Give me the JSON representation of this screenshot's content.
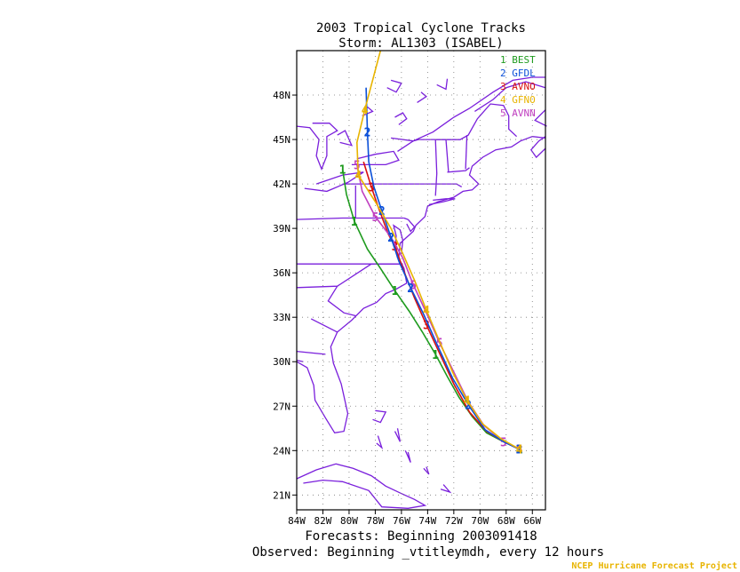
{
  "title": {
    "line1": "2003 Tropical Cyclone Tracks",
    "line2": "Storm: AL1303 (ISABEL)"
  },
  "footer": {
    "forecasts": "Forecasts: Beginning 2003091418",
    "observed": "Observed: Beginning _vtitleymdh, every 12 hours",
    "credit": "NCEP Hurricane Forecast Project"
  },
  "colors": {
    "coast": "#7a1fdc",
    "BEST": "#1e9b1e",
    "GFDL": "#0a4fd8",
    "AVNO": "#d81010",
    "GFNO": "#e8b400",
    "AVNN": "#c040c0",
    "credit": "#e8b400"
  },
  "map": {
    "lon_range": [
      -84,
      -65
    ],
    "lat_range": [
      20,
      51
    ],
    "lon_ticks": [
      {
        "value": -84,
        "label": "84W"
      },
      {
        "value": -82,
        "label": "82W"
      },
      {
        "value": -80,
        "label": "80W"
      },
      {
        "value": -78,
        "label": "78W"
      },
      {
        "value": -76,
        "label": "76W"
      },
      {
        "value": -74,
        "label": "74W"
      },
      {
        "value": -72,
        "label": "72W"
      },
      {
        "value": -70,
        "label": "70W"
      },
      {
        "value": -68,
        "label": "68W"
      },
      {
        "value": -66,
        "label": "66W"
      }
    ],
    "lat_ticks": [
      {
        "value": 21,
        "label": "21N"
      },
      {
        "value": 24,
        "label": "24N"
      },
      {
        "value": 27,
        "label": "27N"
      },
      {
        "value": 30,
        "label": "30N"
      },
      {
        "value": 33,
        "label": "33N"
      },
      {
        "value": 36,
        "label": "36N"
      },
      {
        "value": 39,
        "label": "39N"
      },
      {
        "value": 42,
        "label": "42N"
      },
      {
        "value": 45,
        "label": "45N"
      },
      {
        "value": 48,
        "label": "48N"
      }
    ]
  },
  "legend": [
    {
      "id": "1",
      "name": "BEST",
      "color": "#1e9b1e"
    },
    {
      "id": "2",
      "name": "GFDL",
      "color": "#0a4fd8"
    },
    {
      "id": "3",
      "name": "AVNO",
      "color": "#d81010"
    },
    {
      "id": "4",
      "name": "GFNO",
      "color": "#e8b400"
    },
    {
      "id": "5",
      "name": "AVNN",
      "color": "#c040c0"
    }
  ],
  "tracks": [
    {
      "id": "1",
      "name": "BEST",
      "color": "#1e9b1e",
      "points": [
        [
          -67.0,
          24.1
        ],
        [
          -68.2,
          24.6
        ],
        [
          -69.5,
          25.2
        ],
        [
          -70.6,
          26.3
        ],
        [
          -71.6,
          27.6
        ],
        [
          -72.5,
          29.0
        ],
        [
          -73.4,
          30.5
        ],
        [
          -74.4,
          32.0
        ],
        [
          -75.4,
          33.4
        ],
        [
          -76.5,
          34.8
        ],
        [
          -77.6,
          36.3
        ],
        [
          -78.6,
          37.6
        ],
        [
          -79.6,
          39.5
        ],
        [
          -80.2,
          41.3
        ],
        [
          -80.5,
          43.0
        ]
      ],
      "labels": [
        [
          -67.0,
          24.1
        ],
        [
          -73.4,
          30.5
        ],
        [
          -76.5,
          34.8
        ],
        [
          -79.6,
          39.5
        ],
        [
          -80.5,
          43.0
        ]
      ]
    },
    {
      "id": "2",
      "name": "GFDL",
      "color": "#0a4fd8",
      "points": [
        [
          -67.0,
          24.1
        ],
        [
          -68.2,
          24.6
        ],
        [
          -69.6,
          25.4
        ],
        [
          -70.9,
          27.1
        ],
        [
          -72.1,
          28.9
        ],
        [
          -73.2,
          31.0
        ],
        [
          -74.3,
          33.2
        ],
        [
          -75.3,
          35.0
        ],
        [
          -76.2,
          36.8
        ],
        [
          -76.8,
          38.4
        ],
        [
          -77.5,
          40.2
        ],
        [
          -78.1,
          41.8
        ],
        [
          -78.5,
          43.5
        ],
        [
          -78.6,
          45.5
        ],
        [
          -78.7,
          48.5
        ]
      ],
      "labels": [
        [
          -67.0,
          24.1
        ],
        [
          -70.9,
          27.1
        ],
        [
          -75.3,
          35.0
        ],
        [
          -76.8,
          38.4
        ],
        [
          -77.5,
          40.2
        ],
        [
          -78.6,
          45.5
        ]
      ]
    },
    {
      "id": "3",
      "name": "AVNO",
      "color": "#d81010",
      "points": [
        [
          -67.0,
          24.1
        ],
        [
          -68.2,
          24.6
        ],
        [
          -69.5,
          25.3
        ],
        [
          -70.8,
          26.6
        ],
        [
          -72.0,
          28.5
        ],
        [
          -73.0,
          30.4
        ],
        [
          -74.1,
          32.5
        ],
        [
          -75.0,
          34.3
        ],
        [
          -75.9,
          36.3
        ],
        [
          -76.5,
          37.8
        ],
        [
          -77.0,
          38.6
        ],
        [
          -77.8,
          40.5
        ],
        [
          -78.3,
          41.8
        ],
        [
          -78.9,
          43.5
        ]
      ],
      "labels": [
        [
          -67.0,
          24.1
        ],
        [
          -74.1,
          32.5
        ],
        [
          -76.5,
          37.8
        ],
        [
          -78.3,
          41.8
        ]
      ]
    },
    {
      "id": "4",
      "name": "GFNO",
      "color": "#e8b400",
      "points": [
        [
          -67.0,
          24.1
        ],
        [
          -68.4,
          24.8
        ],
        [
          -69.8,
          25.8
        ],
        [
          -71.0,
          27.4
        ],
        [
          -72.1,
          29.3
        ],
        [
          -73.1,
          31.4
        ],
        [
          -74.1,
          33.5
        ],
        [
          -75.0,
          35.5
        ],
        [
          -75.9,
          37.3
        ],
        [
          -76.8,
          39.0
        ],
        [
          -78.0,
          40.8
        ],
        [
          -79.3,
          42.6
        ],
        [
          -79.4,
          44.8
        ],
        [
          -78.8,
          47.0
        ],
        [
          -77.6,
          51.0
        ]
      ],
      "labels": [
        [
          -67.0,
          24.1
        ],
        [
          -71.0,
          27.4
        ],
        [
          -74.1,
          33.5
        ],
        [
          -79.3,
          42.6
        ],
        [
          -78.8,
          47.0
        ]
      ]
    },
    {
      "id": "5",
      "name": "AVNN",
      "color": "#c040c0",
      "points": [
        [
          -67.0,
          24.1
        ],
        [
          -68.2,
          24.6
        ],
        [
          -69.7,
          25.7
        ],
        [
          -70.9,
          27.3
        ],
        [
          -72.0,
          29.3
        ],
        [
          -73.1,
          31.3
        ],
        [
          -74.1,
          33.3
        ],
        [
          -75.1,
          35.2
        ],
        [
          -75.9,
          37.0
        ],
        [
          -76.8,
          38.4
        ],
        [
          -78.0,
          39.8
        ],
        [
          -79.0,
          41.5
        ],
        [
          -79.4,
          43.3
        ]
      ],
      "labels": [
        [
          -67.0,
          24.1
        ],
        [
          -68.2,
          24.6
        ],
        [
          -73.1,
          31.3
        ],
        [
          -75.1,
          35.2
        ],
        [
          -78.0,
          39.8
        ],
        [
          -79.4,
          43.3
        ]
      ]
    }
  ]
}
